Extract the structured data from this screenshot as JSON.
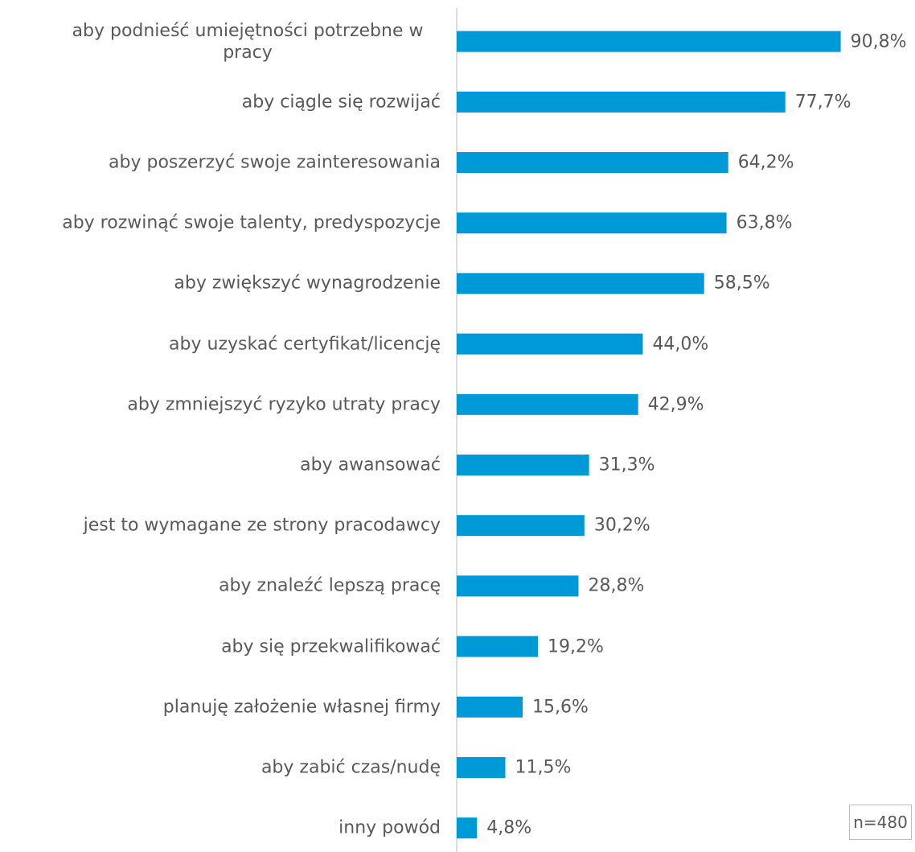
{
  "chart_data": {
    "type": "barh",
    "categories": [
      "aby podnieść umiejętności potrzebne w pracy",
      "aby ciągle się rozwijać",
      "aby poszerzyć swoje zainteresowania",
      "aby rozwinąć swoje talenty, predyspozycje",
      "aby zwiększyć wynagrodzenie",
      "aby uzyskać certyfikat/licencję",
      "aby zmniejszyć ryzyko utraty pracy",
      "aby awansować",
      "jest to wymagane ze strony pracodawcy",
      "aby znaleźć lepszą pracę",
      "aby się przekwalifikować",
      "planuję założenie własnej firmy",
      "aby zabić czas/nudę",
      "inny powód"
    ],
    "values": [
      90.8,
      77.7,
      64.2,
      63.8,
      58.5,
      44.0,
      42.9,
      31.3,
      30.2,
      28.8,
      19.2,
      15.6,
      11.5,
      4.8
    ],
    "value_labels": [
      "90,8%",
      "77,7%",
      "64,2%",
      "63,8%",
      "58,5%",
      "44,0%",
      "42,9%",
      "31,3%",
      "30,2%",
      "28,8%",
      "19,2%",
      "15,6%",
      "11,5%",
      "4,8%"
    ],
    "color": "#0099d8",
    "xlim": [
      0,
      100
    ],
    "annotation": "n=480"
  }
}
